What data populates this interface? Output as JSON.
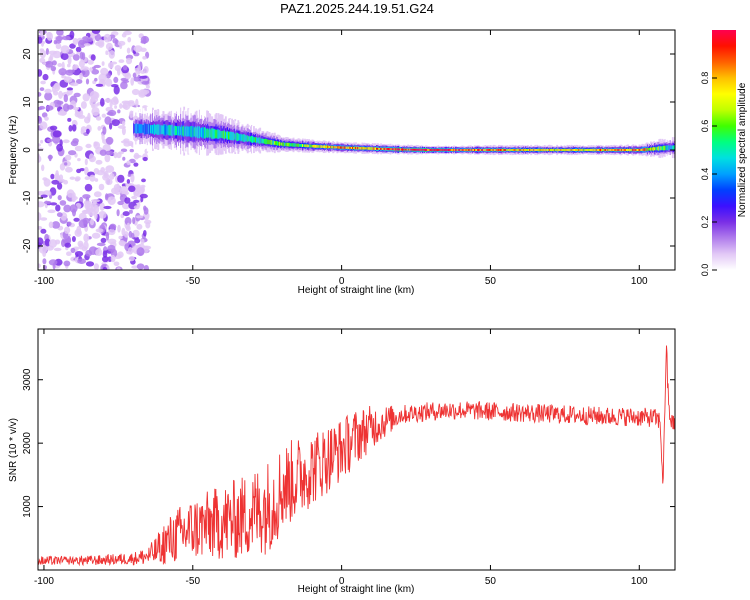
{
  "title": "PAZ1.2025.244.19.51.G24",
  "chart_data": [
    {
      "type": "heatmap",
      "title": "PAZ1.2025.244.19.51.G24",
      "xlabel": "Height of straight line (km)",
      "ylabel": "Frequency (Hz)",
      "xlim": [
        -102,
        112
      ],
      "ylim": [
        -25,
        25
      ],
      "xticks": [
        -100,
        -50,
        0,
        50,
        100
      ],
      "xtick_labels": [
        "-100",
        "-50",
        "0",
        "50",
        "100"
      ],
      "yticks": [
        -20,
        -10,
        0,
        10,
        20
      ],
      "ytick_labels": [
        "-20",
        "-10",
        "0",
        "10",
        "20"
      ],
      "description_of_trend": "Scattered low-amplitude energy below -70 km, broadening spectral line with moderate amplitude from -70 to -20 km, narrow high-amplitude line near 0 Hz above 0 km",
      "ridge": {
        "x": [
          -70,
          -60,
          -50,
          -40,
          -30,
          -20,
          -10,
          0,
          10,
          20,
          30,
          40,
          50,
          60,
          70,
          80,
          90,
          100,
          110
        ],
        "center_hz": [
          4.5,
          4.2,
          3.8,
          3.2,
          2.2,
          1.2,
          0.8,
          0.5,
          0.3,
          0.1,
          0.0,
          0.0,
          0.0,
          0.0,
          0.0,
          0.0,
          0.0,
          0.0,
          0.5
        ],
        "halfwidth_hz": [
          4.0,
          4.0,
          4.5,
          3.5,
          2.5,
          1.5,
          1.2,
          1.0,
          1.0,
          0.9,
          0.8,
          0.8,
          0.9,
          0.9,
          0.9,
          0.9,
          0.9,
          1.0,
          2.0
        ],
        "peak_amplitude": [
          0.35,
          0.45,
          0.5,
          0.55,
          0.5,
          0.6,
          0.7,
          0.85,
          0.8,
          0.95,
          1.0,
          0.95,
          0.85,
          0.8,
          0.75,
          0.8,
          0.8,
          0.85,
          0.5
        ]
      },
      "noise_region": {
        "x_range": [
          -102,
          -65
        ],
        "y_range": [
          -25,
          25
        ],
        "amplitude": "0.0-0.15"
      },
      "colorbar": {
        "label": "Normalized spectral amplitude",
        "range": [
          0.0,
          1.0
        ],
        "ticks": [
          0.0,
          0.2,
          0.4,
          0.6,
          0.8
        ],
        "tick_labels": [
          "0.0",
          "0.2",
          "0.4",
          "0.6",
          "0.8"
        ],
        "colors": [
          "#ffffff",
          "#e2c8f6",
          "#b07cec",
          "#7a2fe6",
          "#3b10ff",
          "#0040ff",
          "#00a0ff",
          "#00e0e0",
          "#00ff80",
          "#40ff00",
          "#c0ff00",
          "#ffff00",
          "#ffc000",
          "#ff6000",
          "#ff1000",
          "#ff0050"
        ]
      }
    },
    {
      "type": "line",
      "xlabel": "Height of straight line (km)",
      "ylabel": "SNR (10 * v/v)",
      "xlim": [
        -102,
        112
      ],
      "ylim": [
        0,
        3800
      ],
      "xticks": [
        -100,
        -50,
        0,
        50,
        100
      ],
      "xtick_labels": [
        "-100",
        "-50",
        "0",
        "50",
        "100"
      ],
      "yticks": [
        1000,
        2000,
        3000
      ],
      "ytick_labels": [
        "1000",
        "2000",
        "3000"
      ],
      "line_color": "#ee3333",
      "series": [
        {
          "name": "SNR",
          "x": [
            -102,
            -95,
            -90,
            -85,
            -80,
            -75,
            -70,
            -65,
            -62,
            -60,
            -55,
            -50,
            -45,
            -40,
            -35,
            -30,
            -25,
            -22,
            -20,
            -15,
            -10,
            -5,
            0,
            5,
            10,
            15,
            20,
            25,
            30,
            35,
            40,
            45,
            50,
            55,
            60,
            65,
            70,
            75,
            80,
            85,
            90,
            95,
            100,
            105,
            107,
            108,
            109,
            110,
            111,
            112
          ],
          "mean": [
            140,
            140,
            145,
            150,
            155,
            170,
            180,
            220,
            300,
            400,
            550,
            650,
            700,
            750,
            800,
            900,
            1000,
            1150,
            1300,
            1450,
            1600,
            1750,
            1900,
            2100,
            2250,
            2350,
            2450,
            2480,
            2500,
            2520,
            2520,
            2510,
            2500,
            2490,
            2480,
            2470,
            2460,
            2450,
            2440,
            2430,
            2420,
            2420,
            2410,
            2400,
            2350,
            1300,
            3500,
            2500,
            2300,
            2350
          ],
          "noise_amplitude": [
            80,
            80,
            80,
            80,
            80,
            90,
            100,
            150,
            250,
            350,
            450,
            500,
            550,
            600,
            650,
            700,
            750,
            750,
            700,
            650,
            600,
            550,
            500,
            450,
            350,
            250,
            150,
            150,
            150,
            150,
            150,
            150,
            150,
            150,
            150,
            150,
            150,
            150,
            150,
            150,
            150,
            150,
            150,
            150,
            150,
            100,
            300,
            150,
            150,
            150
          ]
        }
      ]
    }
  ]
}
